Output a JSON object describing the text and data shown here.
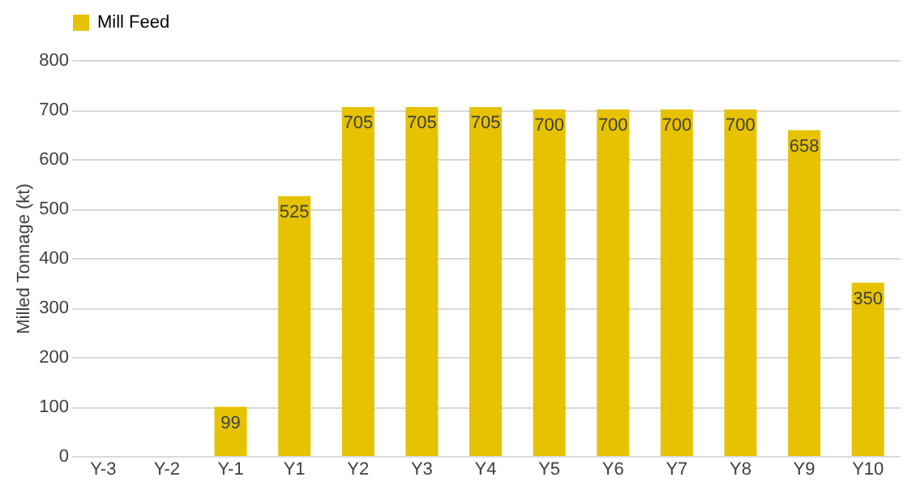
{
  "chart_data": {
    "type": "bar",
    "ylabel": "Milled Tonnage (kt)",
    "categories": [
      "Y-3",
      "Y-2",
      "Y-1",
      "Y1",
      "Y2",
      "Y3",
      "Y4",
      "Y5",
      "Y6",
      "Y7",
      "Y8",
      "Y9",
      "Y10"
    ],
    "series": [
      {
        "name": "Mill Feed",
        "color": "#e6c200",
        "values": [
          null,
          null,
          99,
          525,
          705,
          705,
          705,
          700,
          700,
          700,
          700,
          658,
          350
        ]
      }
    ],
    "ylim": [
      0,
      800
    ],
    "yticks": [
      0,
      100,
      200,
      300,
      400,
      500,
      600,
      700,
      800
    ],
    "grid": "y",
    "legend": "top",
    "data_labels": true
  }
}
